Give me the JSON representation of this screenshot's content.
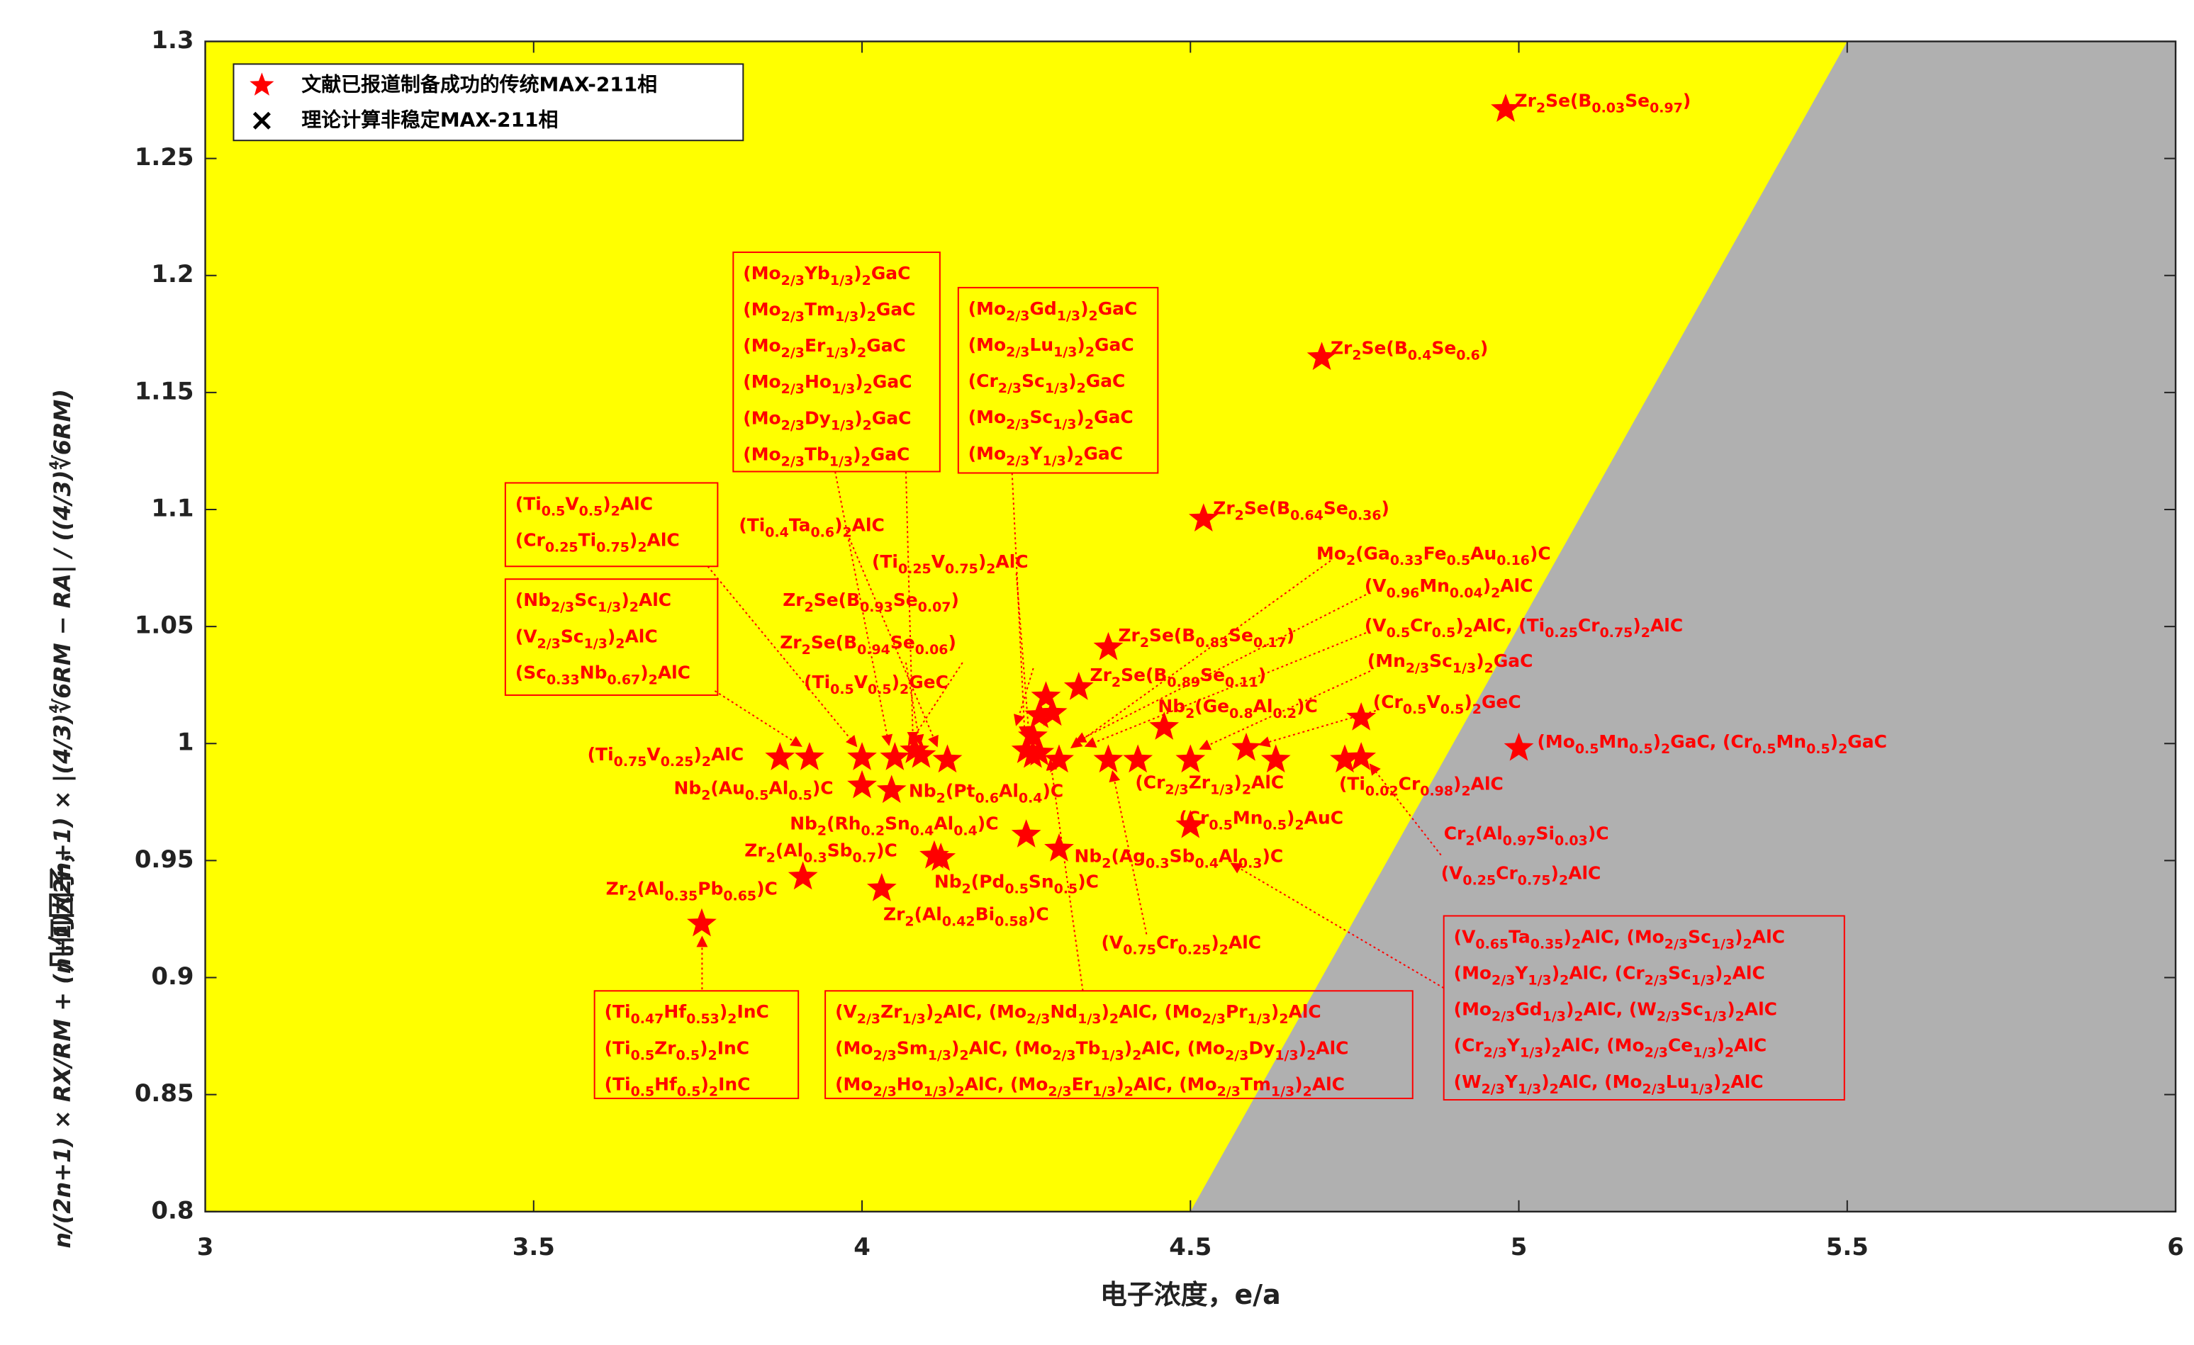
{
  "chart_data": {
    "type": "scatter",
    "x_label": "电子浓度，e/a",
    "y_label": "几何因子，",
    "y_label_formula": "n/(2n+1) × RX/RM + (n+1)/(2n+1) × |(4/3)∜6RM − RA| / ((4/3)∜6RM)",
    "xlim": [
      3,
      6
    ],
    "xticks": [
      3,
      3.5,
      4,
      4.5,
      5,
      5.5,
      6
    ],
    "ylim": [
      0.8,
      1.3
    ],
    "yticks": [
      0.8,
      0.85,
      0.9,
      0.95,
      1,
      1.05,
      1.1,
      1.15,
      1.2,
      1.25,
      1.3
    ],
    "background": "#ffff00",
    "regions": [
      {
        "color": "#b0b0b0",
        "x": [
          4.5,
          5.5,
          6,
          6
        ],
        "y": [
          0.8,
          1.3,
          1.3,
          0.8
        ]
      }
    ],
    "legend": "top-left",
    "series": [
      {
        "name": "文献已报道制备成功的传统MAX-211相",
        "marker": "star",
        "color": "#ff0000",
        "x": [
          4.98,
          4.7,
          4.52,
          5.0,
          4.375,
          4.33,
          4.29,
          4.27,
          4.28,
          4.26,
          4.25,
          4.26,
          4.27,
          4.3,
          3.875,
          3.92,
          4.0,
          4.0,
          4.045,
          4.05,
          4.08,
          4.09,
          4.13,
          4.11,
          4.12,
          3.91,
          4.03,
          3.756,
          4.25,
          4.3,
          4.375,
          4.42,
          4.46,
          4.5,
          4.5,
          4.585,
          4.63,
          4.735,
          4.76,
          4.76
        ],
        "y": [
          1.271,
          1.165,
          1.096,
          0.998,
          1.041,
          1.024,
          1.013,
          1.012,
          1.02,
          1.003,
          0.997,
          0.995,
          0.996,
          0.993,
          0.994,
          0.994,
          0.994,
          0.982,
          0.98,
          0.994,
          0.997,
          0.995,
          0.993,
          0.952,
          0.951,
          0.943,
          0.938,
          0.923,
          0.961,
          0.955,
          0.993,
          0.993,
          1.007,
          0.993,
          0.965,
          0.998,
          0.993,
          0.993,
          0.994,
          1.011
        ]
      },
      {
        "name": "理论计算非稳定MAX-211相",
        "marker": "x",
        "color": "#000000",
        "x": [],
        "y": []
      }
    ],
    "annotations": [
      "Zr2Se(B0.03Se0.97)",
      "Zr2Se(B0.4Se0.6)",
      "Zr2Se(B0.64Se0.36)",
      "(Ti0.4Ta0.6)2AlC",
      "(Ti0.25V0.75)2AlC",
      "Zr2Se(B0.93Se0.07)",
      "Zr2Se(B0.94Se0.06)",
      "(Ti0.5V0.5)2GeC",
      "Zr2Se(B0.83Se0.17)",
      "Zr2Se(B0.89Se0.11)",
      "Mo2(Ga0.33Fe0.5Au0.16)C",
      "(V0.96Mn0.04)2AlC",
      "(V0.5Cr0.5)2AlC, (Ti0.25Cr0.75)2AlC",
      "(Mn2/3Sc1/3)2GaC",
      "(Cr0.5V0.5)2GeC",
      "Nb2(Ge0.8Al0.2)C",
      "(Mo0.5Mn0.5)2GaC, (Cr0.5Mn0.5)2GaC",
      "(Ti0.75V0.25)2AlC",
      "Nb2(Au0.5Al0.5)C",
      "Nb2(Pt0.6Al0.4)C",
      "(Cr2/3Zr1/3)2AlC",
      "(Ti0.02Cr0.98)2AlC",
      "Nb2(Rh0.2Sn0.4Al0.4)C",
      "(Cr0.5Mn0.5)2AuC",
      "Zr2(Al0.3Sb0.7)C",
      "Cr2(Al0.97Si0.03)C",
      "Nb2(Ag0.3Sb0.4Al0.3)C",
      "(V0.25Cr0.75)2AlC",
      "Nb2(Pd0.5Sn0.5)C",
      "Zr2(Al0.35Pb0.65)C",
      "Zr2(Al0.42Bi0.58)C",
      "(V0.75Cr0.25)2AlC"
    ],
    "boxes": [
      [
        "(Mo2/3Yb1/3)2GaC",
        "(Mo2/3Tm1/3)2GaC",
        "(Mo2/3Er1/3)2GaC",
        "(Mo2/3Ho1/3)2GaC",
        "(Mo2/3Dy1/3)2GaC",
        "(Mo2/3Tb1/3)2GaC"
      ],
      [
        "(Mo2/3Gd1/3)2GaC",
        "(Mo2/3Lu1/3)2GaC",
        "(Cr2/3Sc1/3)2GaC",
        "(Mo2/3Sc1/3)2GaC",
        "(Mo2/3Y1/3)2GaC"
      ],
      [
        "(Ti0.5V0.5)2AlC",
        "(Cr0.25Ti0.75)2AlC"
      ],
      [
        "(Nb2/3Sc1/3)2AlC",
        "(V2/3Sc1/3)2AlC",
        "(Sc0.33Nb0.67)2AlC"
      ],
      [
        "(Ti0.47Hf0.53)2InC",
        "(Ti0.5Zr0.5)2InC",
        "(Ti0.5Hf0.5)2InC"
      ],
      [
        "(V2/3Zr1/3)2AlC, (Mo2/3Nd1/3)2AlC, (Mo2/3Pr1/3)2AlC",
        "(Mo2/3Sm1/3)2AlC, (Mo2/3Tb1/3)2AlC, (Mo2/3Dy1/3)2AlC",
        "(Mo2/3Ho1/3)2AlC, (Mo2/3Er1/3)2AlC, (Mo2/3Tm1/3)2AlC"
      ],
      [
        "(V0.65Ta0.35)2AlC, (Mo2/3Sc1/3)2AlC",
        "(Mo2/3Y1/3)2AlC, (Cr2/3Sc1/3)2AlC",
        "(Mo2/3Gd1/3)2AlC, (W2/3Sc1/3)2AlC",
        "(Cr2/3Y1/3)2AlC, (Mo2/3Ce1/3)2AlC",
        "(W2/3Y1/3)2AlC, (Mo2/3Lu1/3)2AlC"
      ]
    ]
  }
}
